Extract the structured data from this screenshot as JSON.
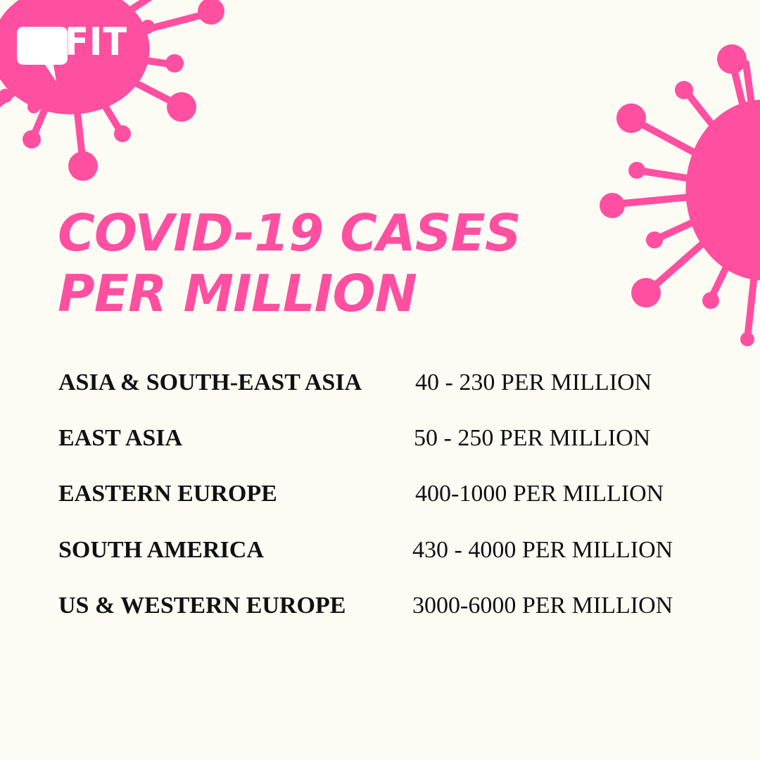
{
  "brand": {
    "logo_text": "FIT",
    "accent_color": "#FF4FA0",
    "background_color": "#FDFCF4"
  },
  "title": {
    "line1": "COVID-19 CASES",
    "line2": "PER MILLION"
  },
  "rows": [
    {
      "region": "ASIA & SOUTH-EAST ASIA",
      "value": "40 - 230 PER MILLION"
    },
    {
      "region": "EAST ASIA",
      "value": "50 - 250 PER MILLION"
    },
    {
      "region": "EASTERN EUROPE",
      "value": "400-1000 PER MILLION"
    },
    {
      "region": "SOUTH AMERICA",
      "value": "430 - 4000 PER MILLION"
    },
    {
      "region": "US & WESTERN EUROPE",
      "value": "3000-6000 PER MILLION"
    }
  ],
  "decorations": [
    "virus-icon",
    "virus-icon"
  ]
}
